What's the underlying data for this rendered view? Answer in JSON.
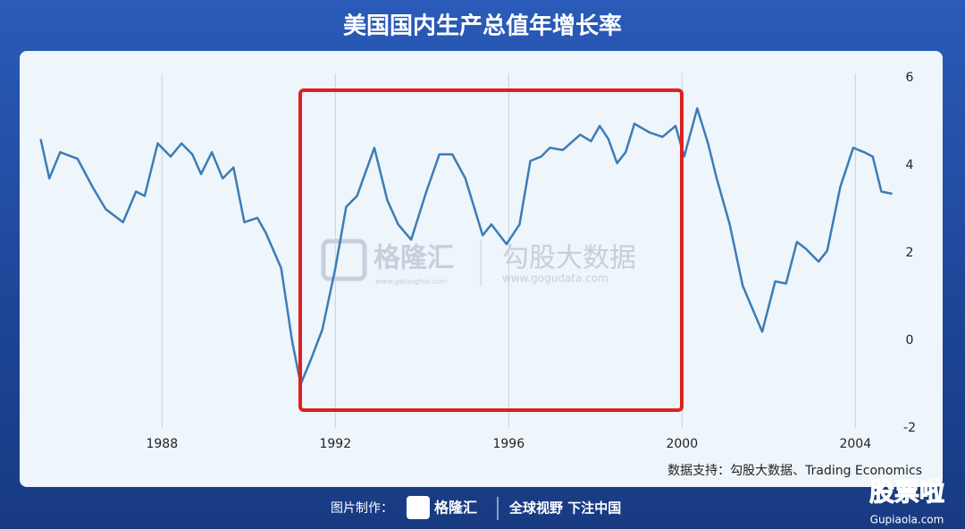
{
  "chart_data": {
    "type": "line",
    "title": "美国国内生产总值年增长率",
    "source": "数据支持：勾股大数据、Trading Economics",
    "watermark": {
      "brand": "格隆汇",
      "brand_url": "www.gelonghui.com",
      "partner": "勾股大数据",
      "partner_url": "www.gogudata.com"
    },
    "footer": {
      "credit": "图片制作：",
      "brand": "格隆汇",
      "slogan": "全球视野 下注中国"
    },
    "corner": {
      "name": "股票啦",
      "url": "Gupiaola.com"
    },
    "x": [
      1985.2,
      1985.4,
      1985.65,
      1986.05,
      1986.4,
      1986.7,
      1987.1,
      1987.4,
      1987.6,
      1987.9,
      1988.2,
      1988.45,
      1988.7,
      1988.9,
      1989.15,
      1989.4,
      1989.65,
      1989.9,
      1990.2,
      1990.4,
      1990.75,
      1991.0,
      1991.2,
      1991.45,
      1991.7,
      1992.0,
      1992.25,
      1992.5,
      1992.9,
      1993.2,
      1993.45,
      1993.75,
      1994.1,
      1994.4,
      1994.7,
      1995.0,
      1995.4,
      1995.6,
      1995.95,
      1996.25,
      1996.5,
      1996.75,
      1996.95,
      1997.25,
      1997.65,
      1997.9,
      1998.1,
      1998.3,
      1998.5,
      1998.7,
      1998.9,
      1999.25,
      1999.55,
      1999.85,
      2000.05,
      2000.35,
      2000.6,
      2000.8,
      2001.1,
      2001.4,
      2001.85,
      2002.15,
      2002.4,
      2002.65,
      2002.85,
      2003.15,
      2003.35,
      2003.65,
      2003.95,
      2004.2,
      2004.4,
      2004.6,
      2004.85
    ],
    "series": [
      {
        "color": "#3d7cb6",
        "values": [
          4.6,
          3.7,
          4.3,
          4.15,
          3.5,
          3.0,
          2.7,
          3.4,
          3.3,
          4.5,
          4.2,
          4.5,
          4.25,
          3.8,
          4.3,
          3.7,
          3.95,
          2.7,
          2.8,
          2.45,
          1.65,
          0,
          -1.0,
          -0.4,
          0.25,
          1.65,
          3.05,
          3.3,
          4.4,
          3.2,
          2.65,
          2.3,
          3.4,
          4.25,
          4.25,
          3.7,
          2.4,
          2.65,
          2.2,
          2.65,
          4.1,
          4.2,
          4.4,
          4.35,
          4.7,
          4.55,
          4.9,
          4.6,
          4.05,
          4.3,
          4.95,
          4.75,
          4.65,
          4.9,
          4.2,
          5.3,
          4.5,
          3.7,
          2.65,
          1.25,
          0.2,
          1.35,
          1.3,
          2.25,
          2.1,
          1.8,
          2.05,
          3.5,
          4.4,
          4.3,
          4.2,
          3.4,
          3.35
        ]
      }
    ],
    "xlim": [
      1984.88,
      2004.88
    ],
    "xticks": [
      1988,
      1992,
      1996,
      2000,
      2004
    ],
    "ylim": [
      -2,
      6
    ],
    "yticks": [
      -2,
      0,
      2,
      4,
      6
    ],
    "grid": true
  }
}
